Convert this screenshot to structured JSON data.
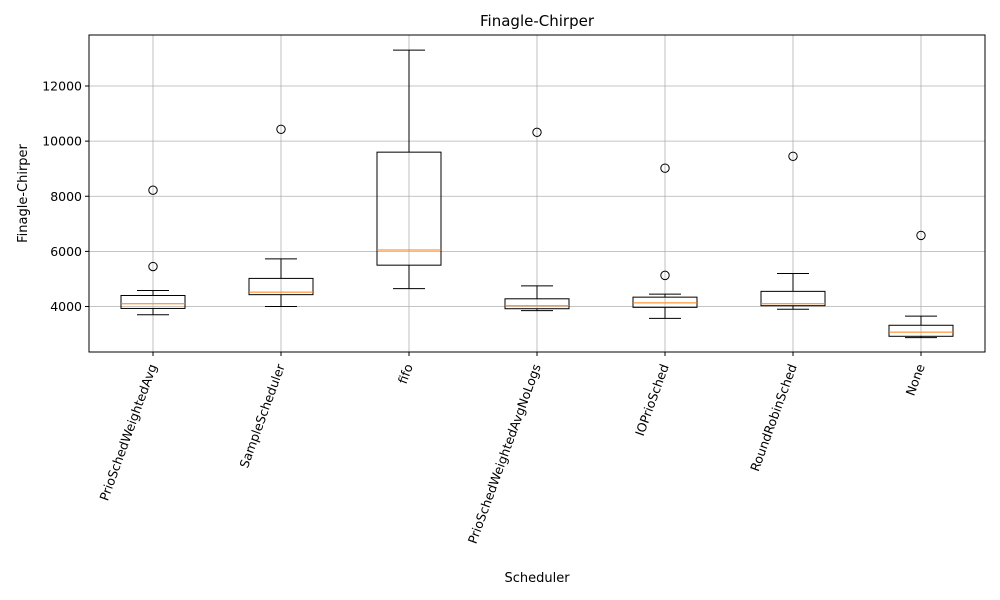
{
  "chart_data": {
    "type": "box",
    "title": "Finagle-Chirper",
    "xlabel": "Scheduler",
    "ylabel": "Finagle-Chirper",
    "ylim": [
      2350,
      13850
    ],
    "yticks": [
      4000,
      6000,
      8000,
      10000,
      12000
    ],
    "ytick_labels": [
      "4000",
      "6000",
      "8000",
      "10000",
      "12000"
    ],
    "grid": true,
    "x_tick_rotation": -70,
    "colors": {
      "box": "#000000",
      "median": "#ff7f0e",
      "grid": "#b0b0b0",
      "outlier": "#000000"
    },
    "categories": [
      "PrioSchedWeightedAvg",
      "SampleScheduler",
      "fifo",
      "PrioSchedWeightedAvgNoLogs",
      "IOPrioSched",
      "RoundRobinSched",
      "None"
    ],
    "boxes": [
      {
        "whislo": 3700,
        "q1": 3930,
        "med": 4100,
        "q3": 4400,
        "whishi": 4580,
        "fliers": [
          5450,
          8220
        ]
      },
      {
        "whislo": 4000,
        "q1": 4430,
        "med": 4520,
        "q3": 5020,
        "whishi": 5730,
        "fliers": [
          10430
        ]
      },
      {
        "whislo": 4650,
        "q1": 5500,
        "med": 6050,
        "q3": 9600,
        "whishi": 13300,
        "fliers": []
      },
      {
        "whislo": 3850,
        "q1": 3920,
        "med": 4030,
        "q3": 4280,
        "whishi": 4750,
        "fliers": [
          10320
        ]
      },
      {
        "whislo": 3570,
        "q1": 3970,
        "med": 4130,
        "q3": 4340,
        "whishi": 4450,
        "fliers": [
          5130,
          9020
        ]
      },
      {
        "whislo": 3900,
        "q1": 4030,
        "med": 4100,
        "q3": 4550,
        "whishi": 5200,
        "fliers": [
          9450
        ]
      },
      {
        "whislo": 2870,
        "q1": 2920,
        "med": 3070,
        "q3": 3320,
        "whishi": 3650,
        "fliers": [
          6580
        ]
      }
    ]
  }
}
